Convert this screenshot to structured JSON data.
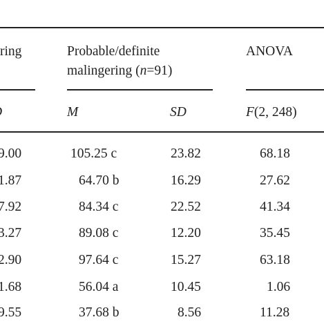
{
  "header": {
    "group_left_partial": "ring",
    "group_mid_line1": "Probable/definite",
    "group_mid_line2_text": "malingering (",
    "group_mid_n_symbol": "n",
    "group_mid_n_rest": "=91)",
    "group_right": "ANOVA",
    "sub_left_partial": "D",
    "sub_m": "M",
    "sub_sd": "SD",
    "sub_f_symbol": "F",
    "sub_f_rest": "(2, 248)"
  },
  "rows": [
    {
      "partial": "9.00",
      "m": "105.25 c",
      "sd": "23.82",
      "f": "68.18"
    },
    {
      "partial": "1.87",
      "m": "64.70 b",
      "sd": "16.29",
      "f": "27.62"
    },
    {
      "partial": "7.92",
      "m": "84.34 c",
      "sd": "22.52",
      "f": "41.34"
    },
    {
      "partial": "3.27",
      "m": "89.08 c",
      "sd": "12.20",
      "f": "35.45"
    },
    {
      "partial": "2.90",
      "m": "97.64 c",
      "sd": "15.27",
      "f": "63.18"
    },
    {
      "partial": "1.68",
      "m": "56.04 a",
      "sd": "10.45",
      "f": "1.06"
    },
    {
      "partial": "9.55",
      "m": "37.68 b",
      "sd": "8.56",
      "f": "11.28"
    }
  ]
}
